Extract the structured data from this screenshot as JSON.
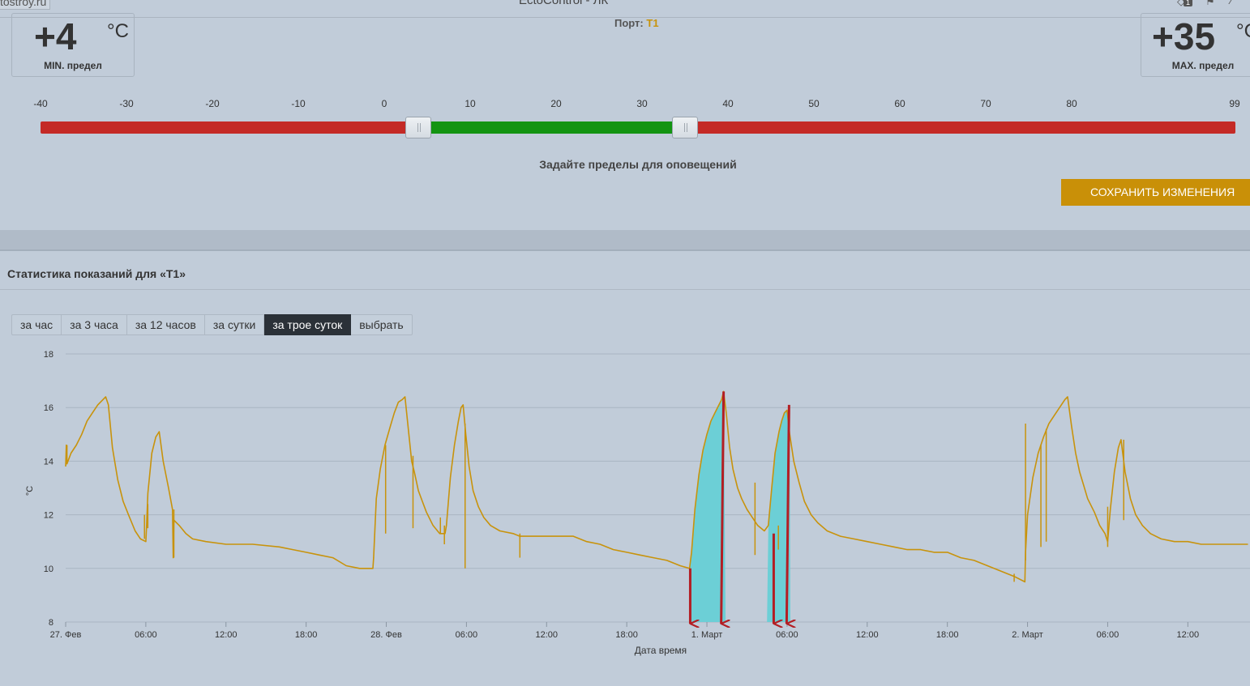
{
  "window": {
    "site": "tostroy.ru",
    "title": "EctoControl - ЛК",
    "badge": "1"
  },
  "limits": {
    "min": {
      "value": "+4",
      "unit": "°C",
      "caption": "MIN. предел"
    },
    "max": {
      "value": "+35",
      "unit": "°C",
      "caption": "MAX. предел"
    }
  },
  "port": {
    "label": "Порт:",
    "value": "T1"
  },
  "scale": {
    "ticks": [
      "-40",
      "-30",
      "-20",
      "-10",
      "0",
      "10",
      "20",
      "30",
      "40",
      "50",
      "60",
      "70",
      "80",
      "99"
    ],
    "min": -40,
    "max": 99,
    "low": 4,
    "high": 35
  },
  "hint": "Задайте пределы для оповещений",
  "save_label": "СОХРАНИТЬ ИЗМЕНЕНИЯ",
  "stats_title": "Статистика показаний для «T1»",
  "periods": [
    {
      "label": "за час",
      "active": false
    },
    {
      "label": "за 3 часа",
      "active": false
    },
    {
      "label": "за 12 часов",
      "active": false
    },
    {
      "label": "за сутки",
      "active": false
    },
    {
      "label": "за трое суток",
      "active": true
    },
    {
      "label": "выбрать",
      "active": false
    }
  ],
  "colors": {
    "line": "#c8930c",
    "fill": "#6ccfd6",
    "arrow": "#b31e24",
    "green": "#139412",
    "red": "#c42a26"
  },
  "chart_data": {
    "type": "line",
    "ylabel": "°C",
    "xlabel": "Дата время",
    "ylim": [
      8,
      18
    ],
    "yticks": [
      8,
      10,
      12,
      14,
      16,
      18
    ],
    "xlim_hours": [
      0,
      88.5
    ],
    "xticks": [
      {
        "h": 0,
        "label": "27. Фев"
      },
      {
        "h": 6,
        "label": "06:00"
      },
      {
        "h": 12,
        "label": "12:00"
      },
      {
        "h": 18,
        "label": "18:00"
      },
      {
        "h": 24,
        "label": "28. Фев"
      },
      {
        "h": 30,
        "label": "06:00"
      },
      {
        "h": 36,
        "label": "12:00"
      },
      {
        "h": 42,
        "label": "18:00"
      },
      {
        "h": 48,
        "label": "1. Март"
      },
      {
        "h": 54,
        "label": "06:00"
      },
      {
        "h": 60,
        "label": "12:00"
      },
      {
        "h": 66,
        "label": "18:00"
      },
      {
        "h": 72,
        "label": "2. Март"
      },
      {
        "h": 78,
        "label": "06:00"
      },
      {
        "h": 84,
        "label": "12:00"
      }
    ],
    "series": [
      {
        "name": "T1",
        "points": [
          [
            0.0,
            13.8
          ],
          [
            0.05,
            14.6
          ],
          [
            0.1,
            13.9
          ],
          [
            0.4,
            14.3
          ],
          [
            0.8,
            14.6
          ],
          [
            1.2,
            15.0
          ],
          [
            1.6,
            15.5
          ],
          [
            2.0,
            15.8
          ],
          [
            2.4,
            16.1
          ],
          [
            2.8,
            16.3
          ],
          [
            3.0,
            16.4
          ],
          [
            3.2,
            16.1
          ],
          [
            3.5,
            14.5
          ],
          [
            3.9,
            13.3
          ],
          [
            4.3,
            12.5
          ],
          [
            4.7,
            12.0
          ],
          [
            5.2,
            11.4
          ],
          [
            5.6,
            11.1
          ],
          [
            6.0,
            11.0
          ],
          [
            6.05,
            11.5
          ],
          [
            6.15,
            12.8
          ],
          [
            6.45,
            14.3
          ],
          [
            6.75,
            14.9
          ],
          [
            7.0,
            15.1
          ],
          [
            7.3,
            14.0
          ],
          [
            7.7,
            13.0
          ],
          [
            8.0,
            12.2
          ],
          [
            8.05,
            10.4
          ],
          [
            8.1,
            11.8
          ],
          [
            8.5,
            11.6
          ],
          [
            9.0,
            11.3
          ],
          [
            9.5,
            11.1
          ],
          [
            10.5,
            11.0
          ],
          [
            12.0,
            10.9
          ],
          [
            13.0,
            10.9
          ],
          [
            14.0,
            10.9
          ],
          [
            16.0,
            10.8
          ],
          [
            17.0,
            10.7
          ],
          [
            18.0,
            10.6
          ],
          [
            19.0,
            10.5
          ],
          [
            20.0,
            10.4
          ],
          [
            21.0,
            10.1
          ],
          [
            22.0,
            10.0
          ],
          [
            23.0,
            10.0
          ],
          [
            23.05,
            10.4
          ],
          [
            23.25,
            12.6
          ],
          [
            23.55,
            13.7
          ],
          [
            23.9,
            14.6
          ],
          [
            24.3,
            15.3
          ],
          [
            24.6,
            15.8
          ],
          [
            24.9,
            16.2
          ],
          [
            25.2,
            16.3
          ],
          [
            25.4,
            16.4
          ],
          [
            25.65,
            15.2
          ],
          [
            25.9,
            14.0
          ],
          [
            26.1,
            13.6
          ],
          [
            26.4,
            12.9
          ],
          [
            26.7,
            12.5
          ],
          [
            27.0,
            12.1
          ],
          [
            27.5,
            11.6
          ],
          [
            28.0,
            11.3
          ],
          [
            28.4,
            11.3
          ],
          [
            28.5,
            11.6
          ],
          [
            28.8,
            13.4
          ],
          [
            29.1,
            14.6
          ],
          [
            29.4,
            15.5
          ],
          [
            29.6,
            16.0
          ],
          [
            29.75,
            16.1
          ],
          [
            29.95,
            15.0
          ],
          [
            30.2,
            13.8
          ],
          [
            30.5,
            12.9
          ],
          [
            30.9,
            12.3
          ],
          [
            31.3,
            11.9
          ],
          [
            31.8,
            11.6
          ],
          [
            32.5,
            11.4
          ],
          [
            33.5,
            11.3
          ],
          [
            34.0,
            11.2
          ],
          [
            35.0,
            11.2
          ],
          [
            36.0,
            11.2
          ],
          [
            37.0,
            11.2
          ],
          [
            38.0,
            11.2
          ],
          [
            39.0,
            11.0
          ],
          [
            40.0,
            10.9
          ],
          [
            41.0,
            10.7
          ],
          [
            42.0,
            10.6
          ],
          [
            43.0,
            10.5
          ],
          [
            44.0,
            10.4
          ],
          [
            45.0,
            10.3
          ],
          [
            46.0,
            10.1
          ],
          [
            46.7,
            10.0
          ],
          [
            46.85,
            10.6
          ],
          [
            47.1,
            12.2
          ],
          [
            47.4,
            13.5
          ],
          [
            47.7,
            14.4
          ],
          [
            48.0,
            15.0
          ],
          [
            48.3,
            15.5
          ],
          [
            48.6,
            15.8
          ],
          [
            48.9,
            16.1
          ],
          [
            49.1,
            16.3
          ],
          [
            49.25,
            16.6
          ],
          [
            49.45,
            15.8
          ],
          [
            49.7,
            14.5
          ],
          [
            49.95,
            13.7
          ],
          [
            50.3,
            13.0
          ],
          [
            50.6,
            12.6
          ],
          [
            51.0,
            12.2
          ],
          [
            51.4,
            11.9
          ],
          [
            51.8,
            11.6
          ],
          [
            52.3,
            11.4
          ],
          [
            52.6,
            11.6
          ],
          [
            52.85,
            13.0
          ],
          [
            53.1,
            14.3
          ],
          [
            53.4,
            15.1
          ],
          [
            53.6,
            15.5
          ],
          [
            53.8,
            15.8
          ],
          [
            54.0,
            15.9
          ],
          [
            54.2,
            15.0
          ],
          [
            54.5,
            14.0
          ],
          [
            54.9,
            13.2
          ],
          [
            55.3,
            12.5
          ],
          [
            55.8,
            12.0
          ],
          [
            56.3,
            11.7
          ],
          [
            57.0,
            11.4
          ],
          [
            58.0,
            11.2
          ],
          [
            59.0,
            11.1
          ],
          [
            60.0,
            11.0
          ],
          [
            61.0,
            10.9
          ],
          [
            62.0,
            10.8
          ],
          [
            63.0,
            10.7
          ],
          [
            64.0,
            10.7
          ],
          [
            65.0,
            10.6
          ],
          [
            66.0,
            10.6
          ],
          [
            67.0,
            10.4
          ],
          [
            68.0,
            10.3
          ],
          [
            69.0,
            10.1
          ],
          [
            70.0,
            9.9
          ],
          [
            71.0,
            9.7
          ],
          [
            71.8,
            9.5
          ],
          [
            71.85,
            10.6
          ],
          [
            72.0,
            12.0
          ],
          [
            72.4,
            13.4
          ],
          [
            72.8,
            14.3
          ],
          [
            73.2,
            14.9
          ],
          [
            73.6,
            15.4
          ],
          [
            74.0,
            15.7
          ],
          [
            74.4,
            16.0
          ],
          [
            74.8,
            16.3
          ],
          [
            75.0,
            16.4
          ],
          [
            75.3,
            15.3
          ],
          [
            75.6,
            14.3
          ],
          [
            75.9,
            13.6
          ],
          [
            76.2,
            13.1
          ],
          [
            76.5,
            12.6
          ],
          [
            77.0,
            12.1
          ],
          [
            77.4,
            11.6
          ],
          [
            77.8,
            11.3
          ],
          [
            78.0,
            11.0
          ],
          [
            78.2,
            12.2
          ],
          [
            78.5,
            13.6
          ],
          [
            78.8,
            14.5
          ],
          [
            79.0,
            14.8
          ],
          [
            79.3,
            13.6
          ],
          [
            79.7,
            12.6
          ],
          [
            80.1,
            12.0
          ],
          [
            80.6,
            11.6
          ],
          [
            81.2,
            11.3
          ],
          [
            82.0,
            11.1
          ],
          [
            83.0,
            11.0
          ],
          [
            84.0,
            11.0
          ],
          [
            85.0,
            10.9
          ],
          [
            86.0,
            10.9
          ],
          [
            87.0,
            10.9
          ],
          [
            88.5,
            10.9
          ]
        ],
        "spikes": [
          [
            0.1,
            13.9,
            14.6
          ],
          [
            5.9,
            11.1,
            12.0
          ],
          [
            6.15,
            11.5,
            12.4
          ],
          [
            8.1,
            10.4,
            12.2
          ],
          [
            23.95,
            11.3,
            14.6
          ],
          [
            26.0,
            11.5,
            14.2
          ],
          [
            28.05,
            11.3,
            11.9
          ],
          [
            28.35,
            10.9,
            11.6
          ],
          [
            29.9,
            10.0,
            15.4
          ],
          [
            34.0,
            10.4,
            11.3
          ],
          [
            51.6,
            10.5,
            13.2
          ],
          [
            53.35,
            10.7,
            11.6
          ],
          [
            71.0,
            9.5,
            9.8
          ],
          [
            71.85,
            10.3,
            15.4
          ],
          [
            73.0,
            10.8,
            14.6
          ],
          [
            73.4,
            11.0,
            15.2
          ],
          [
            78.0,
            10.8,
            12.3
          ],
          [
            79.2,
            11.8,
            14.8
          ]
        ],
        "highlight": [
          [
            46.7,
            49.4
          ],
          [
            52.5,
            54.25
          ]
        ]
      }
    ],
    "arrows_h": [
      46.75,
      49.25,
      53.0,
      54.15
    ]
  }
}
